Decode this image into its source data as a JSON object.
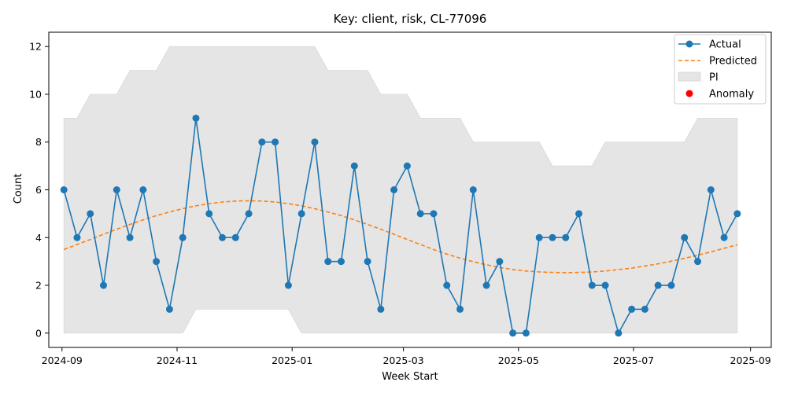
{
  "chart_data": {
    "type": "line",
    "title": "Key: client, risk, CL-77096",
    "xlabel": "Week Start",
    "ylabel": "Count",
    "xlim": [
      "2024-08-25",
      "2025-09-12"
    ],
    "ylim": [
      -0.6,
      12.6
    ],
    "x_ticks": [
      "2024-09-01",
      "2024-11-01",
      "2025-01-01",
      "2025-03-01",
      "2025-05-01",
      "2025-07-01",
      "2025-09-01"
    ],
    "x_tick_labels": [
      "2024-09",
      "2024-11",
      "2025-01",
      "2025-03",
      "2025-05",
      "2025-07",
      "2025-09"
    ],
    "y_ticks": [
      0,
      2,
      4,
      6,
      8,
      10,
      12
    ],
    "y_tick_labels": [
      "0",
      "2",
      "4",
      "6",
      "8",
      "10",
      "12"
    ],
    "grid": false,
    "legend_position": "top-right",
    "x": [
      "2024-09-02",
      "2024-09-09",
      "2024-09-16",
      "2024-09-23",
      "2024-09-30",
      "2024-10-07",
      "2024-10-14",
      "2024-10-21",
      "2024-10-28",
      "2024-11-04",
      "2024-11-11",
      "2024-11-18",
      "2024-11-25",
      "2024-12-02",
      "2024-12-09",
      "2024-12-16",
      "2024-12-23",
      "2024-12-30",
      "2025-01-06",
      "2025-01-13",
      "2025-01-20",
      "2025-01-27",
      "2025-02-03",
      "2025-02-10",
      "2025-02-17",
      "2025-02-24",
      "2025-03-03",
      "2025-03-10",
      "2025-03-17",
      "2025-03-24",
      "2025-03-31",
      "2025-04-07",
      "2025-04-14",
      "2025-04-21",
      "2025-04-28",
      "2025-05-05",
      "2025-05-12",
      "2025-05-19",
      "2025-05-26",
      "2025-06-02",
      "2025-06-09",
      "2025-06-16",
      "2025-06-23",
      "2025-06-30",
      "2025-07-07",
      "2025-07-14",
      "2025-07-21",
      "2025-07-28",
      "2025-08-04",
      "2025-08-11",
      "2025-08-18",
      "2025-08-25"
    ],
    "series": [
      {
        "name": "Actual",
        "color": "#1f77b4",
        "style": "line-marker",
        "values": [
          6,
          4,
          5,
          2,
          6,
          4,
          6,
          3,
          1,
          4,
          9,
          5,
          4,
          4,
          5,
          8,
          8,
          2,
          5,
          8,
          3,
          3,
          7,
          3,
          1,
          6,
          7,
          5,
          5,
          2,
          1,
          6,
          2,
          3,
          0,
          0,
          4,
          4,
          4,
          5,
          2,
          2,
          0,
          1,
          1,
          2,
          2,
          4,
          3,
          6,
          4,
          5
        ]
      },
      {
        "name": "Predicted",
        "color": "#ff7f0e",
        "style": "dashed",
        "values": [
          3.5,
          3.71,
          3.92,
          4.14,
          4.35,
          4.55,
          4.74,
          4.92,
          5.07,
          5.21,
          5.33,
          5.42,
          5.49,
          5.53,
          5.54,
          5.53,
          5.49,
          5.42,
          5.33,
          5.21,
          5.07,
          4.92,
          4.74,
          4.55,
          4.35,
          4.14,
          3.92,
          3.71,
          3.5,
          3.31,
          3.14,
          2.99,
          2.86,
          2.75,
          2.66,
          2.6,
          2.56,
          2.54,
          2.53,
          2.54,
          2.56,
          2.6,
          2.66,
          2.72,
          2.81,
          2.9,
          3.01,
          3.13,
          3.26,
          3.4,
          3.55,
          3.7
        ]
      }
    ],
    "interval": {
      "name": "PI",
      "color": "#e5e5e5",
      "lower": [
        0,
        0,
        0,
        0,
        0,
        0,
        0,
        0,
        0,
        0,
        1,
        1,
        1,
        1,
        1,
        1,
        1,
        1,
        0,
        0,
        0,
        0,
        0,
        0,
        0,
        0,
        0,
        0,
        0,
        0,
        0,
        0,
        0,
        0,
        0,
        0,
        0,
        0,
        0,
        0,
        0,
        0,
        0,
        0,
        0,
        0,
        0,
        0,
        0,
        0,
        0,
        0
      ],
      "upper": [
        9,
        9,
        10,
        10,
        10,
        11,
        11,
        11,
        12,
        12,
        12,
        12,
        12,
        12,
        12,
        12,
        12,
        12,
        12,
        12,
        11,
        11,
        11,
        11,
        10,
        10,
        10,
        9,
        9,
        9,
        9,
        8,
        8,
        8,
        8,
        8,
        8,
        7,
        7,
        7,
        7,
        8,
        8,
        8,
        8,
        8,
        8,
        8,
        9,
        9,
        9,
        9
      ]
    },
    "anomalies": {
      "name": "Anomaly",
      "color": "#ff0000",
      "points": []
    }
  }
}
